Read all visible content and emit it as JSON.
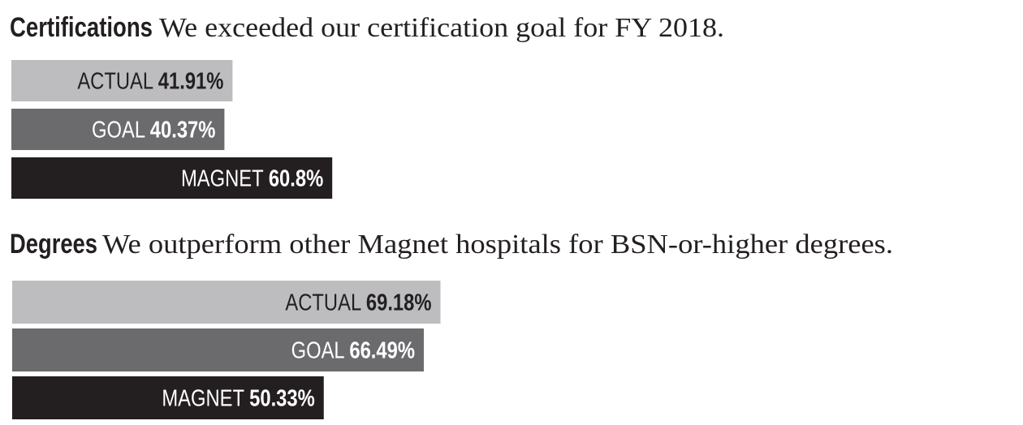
{
  "chart_data": [
    {
      "type": "bar",
      "orientation": "horizontal",
      "heading": "Certifications",
      "title": "We exceeded our certification goal for FY 2018.",
      "categories": [
        "ACTUAL",
        "GOAL",
        "MAGNET"
      ],
      "values": [
        41.91,
        40.37,
        60.8
      ],
      "value_labels": [
        "41.91%",
        "40.37%",
        "60.8%"
      ],
      "colors": [
        "#bdbdc0",
        "#6b6b6d",
        "#231f20"
      ],
      "grid": false,
      "legend": "none"
    },
    {
      "type": "bar",
      "orientation": "horizontal",
      "heading": "Degrees",
      "title": "We outperform other Magnet hospitals for BSN-or-higher degrees.",
      "categories": [
        "ACTUAL",
        "GOAL",
        "MAGNET"
      ],
      "values": [
        69.18,
        66.49,
        50.33
      ],
      "value_labels": [
        "69.18%",
        "66.49%",
        "50.33%"
      ],
      "colors": [
        "#bdbdc0",
        "#6b6b6d",
        "#231f20"
      ],
      "grid": false,
      "legend": "none"
    }
  ]
}
